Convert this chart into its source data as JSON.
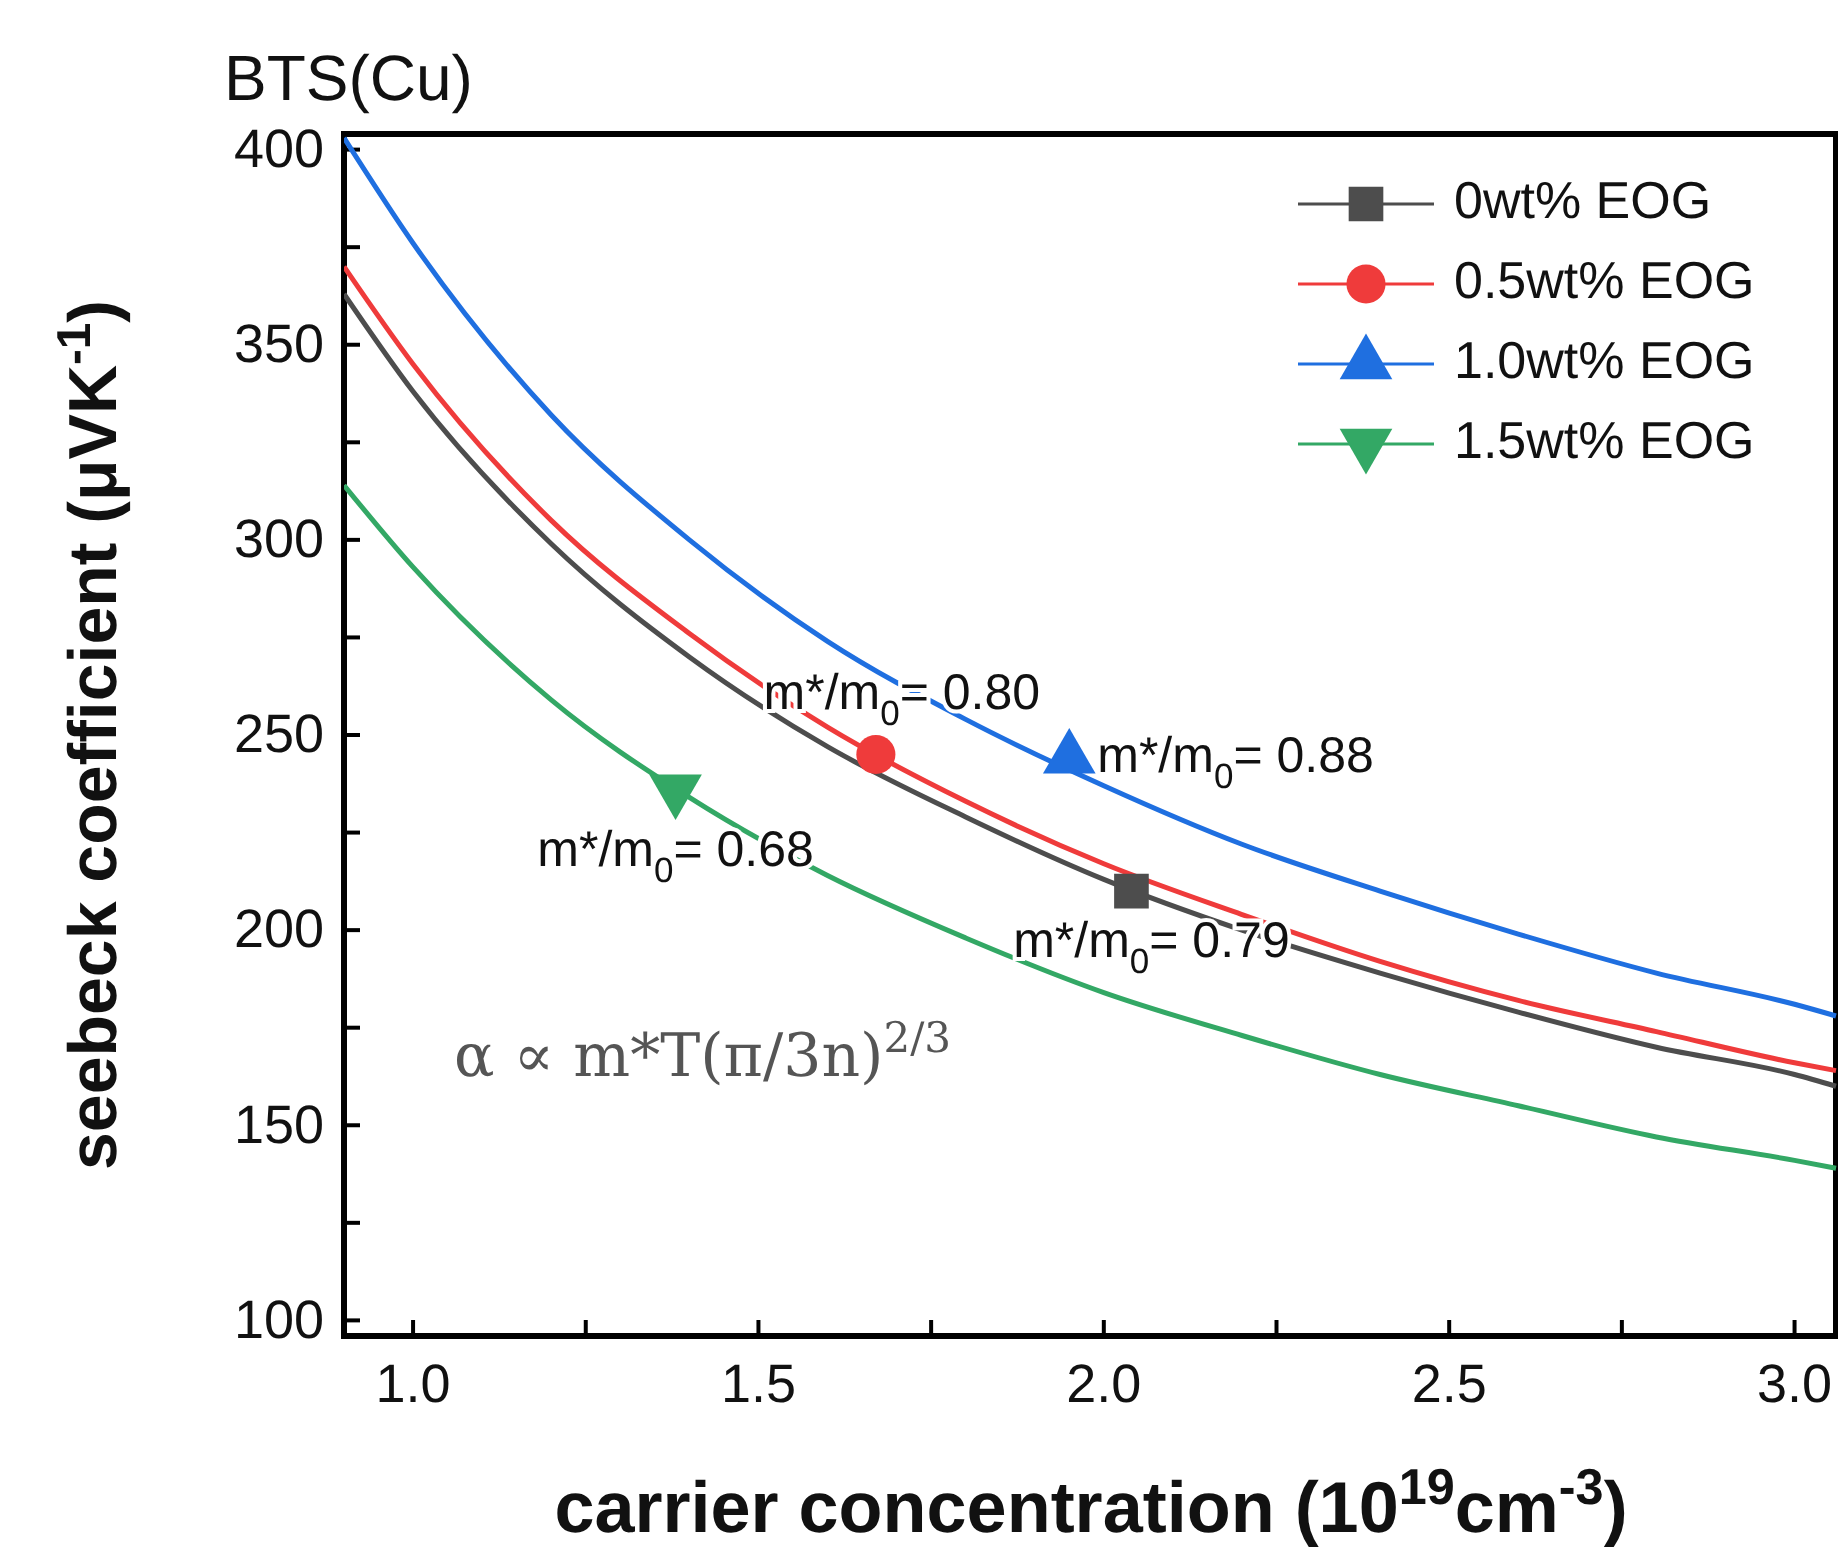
{
  "chart_data": {
    "type": "line",
    "title": "BTS(Cu)",
    "xlabel": "carrier concentration (10$^{19}$cm$^{-3}$)",
    "ylabel": "seebeck coefficient (μVK$^{-1}$)",
    "x": [
      0.9,
      1.0,
      1.2,
      1.4,
      1.6,
      1.8,
      2.0,
      2.2,
      2.4,
      2.6,
      2.8,
      3.0,
      3.06
    ],
    "xlim": [
      0.9,
      3.06
    ],
    "ylim": [
      96,
      404
    ],
    "xticks": [
      {
        "value": 1,
        "label": "1.0"
      },
      {
        "value": 1.25,
        "label": null
      },
      {
        "value": 1.5,
        "label": "1.5"
      },
      {
        "value": 1.75,
        "label": null
      },
      {
        "value": 2,
        "label": "2.0"
      },
      {
        "value": 2.25,
        "label": null
      },
      {
        "value": 2.5,
        "label": "2.5"
      },
      {
        "value": 2.75,
        "label": null
      },
      {
        "value": 3,
        "label": "3.0"
      }
    ],
    "yticks": [
      100,
      {
        "value": 125,
        "label": null
      },
      150,
      {
        "value": 175,
        "label": null
      },
      200,
      {
        "value": 225,
        "label": null
      },
      250,
      {
        "value": 275,
        "label": null
      },
      300,
      {
        "value": 325,
        "label": null
      },
      350,
      {
        "value": 375,
        "label": null
      },
      400
    ],
    "grid": false,
    "legend": "top right",
    "series": [
      {
        "name": "0wt% EOG",
        "color": "#4d4d4d",
        "values": [
          363,
          338,
          299,
          270,
          247,
          229,
          213,
          200,
          189,
          179,
          170,
          163,
          160
        ]
      },
      {
        "name": "0.5wt% EOG",
        "color": "#ef3b3b",
        "values": [
          370,
          345,
          305,
          276,
          252,
          233,
          217,
          204,
          192,
          182,
          174,
          166,
          164
        ]
      },
      {
        "name": "1.0wt% EOG",
        "color": "#1f6fe0",
        "values": [
          403,
          376,
          332,
          300,
          274,
          254,
          237,
          222,
          210,
          199,
          189,
          181,
          178
        ]
      },
      {
        "name": "1.5wt% EOG",
        "color": "#33a865",
        "values": [
          314,
          293,
          259,
          234,
          214,
          198,
          184,
          173,
          163,
          155,
          147,
          141,
          139
        ]
      },
      {
        "type": "scatter",
        "color": "#4d4d4d",
        "marker": "square",
        "x": [
          2.04
        ],
        "values": [
          210
        ]
      },
      {
        "type": "scatter",
        "color": "#ef3b3b",
        "marker": "circle",
        "x": [
          1.67
        ],
        "values": [
          245
        ]
      },
      {
        "type": "scatter",
        "color": "#1f6fe0",
        "marker": "triangle",
        "x": [
          1.95
        ],
        "values": [
          244
        ]
      },
      {
        "type": "scatter",
        "color": "#33a865",
        "marker": "triangle-down",
        "x": [
          1.38
        ],
        "values": [
          236
        ]
      }
    ],
    "annotations": [
      {
        "text": "m*/m$_{0}$= 0.80",
        "x": 1.67,
        "y": 245
      },
      {
        "text": "m*/m$_{0}$= 0.88",
        "x": 1.95,
        "y": 244
      },
      {
        "text": "m*/m$_{0}$= 0.68",
        "x": 1.38,
        "y": 236
      },
      {
        "text": "m*/m$_{0}$= 0.79",
        "x": 2.04,
        "y": 210
      },
      "α ∝ m*T(π/3n)$^{2/3}$"
    ]
  }
}
